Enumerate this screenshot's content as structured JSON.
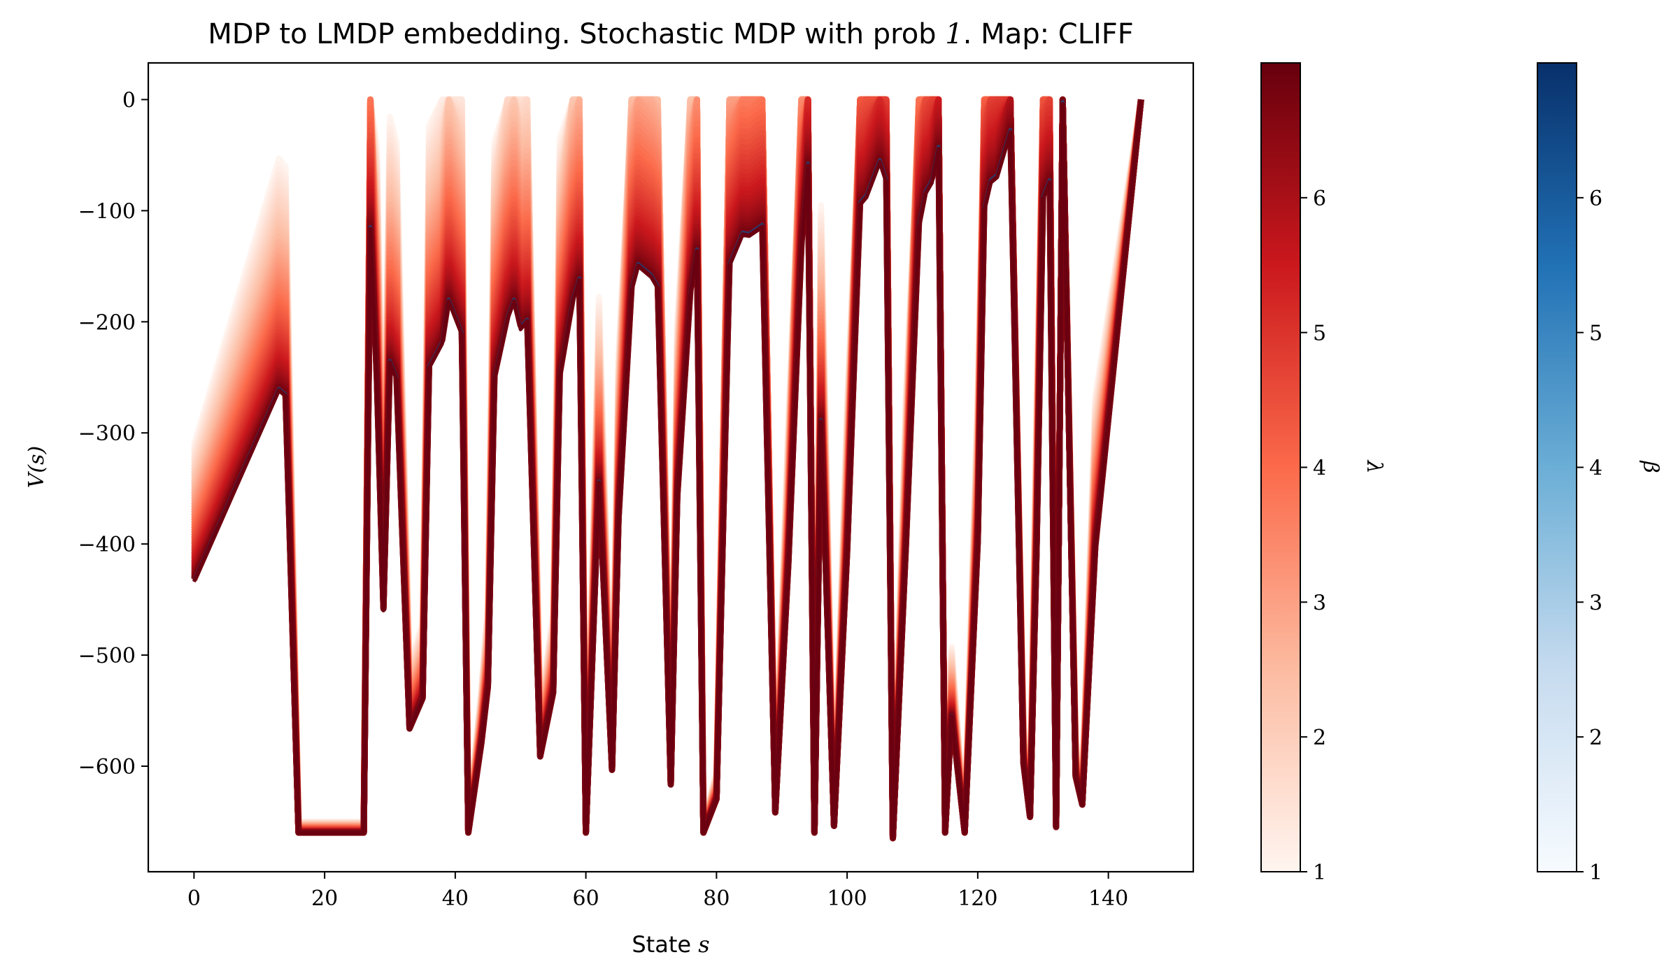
{
  "chart_data": {
    "type": "line",
    "title": "MDP to LMDP embedding. Stochastic MDP with prob 1. Map: CLIFF",
    "title_parts": {
      "prefix": "MDP to LMDP embedding. Stochastic MDP with prob ",
      "math": "1",
      "suffix": ". Map: CLIFF"
    },
    "xlabel_parts": {
      "text": "State ",
      "math": "s"
    },
    "ylabel": "V(s)",
    "xlim": [
      -7,
      153
    ],
    "ylim": [
      -695,
      33
    ],
    "xticks": [
      0,
      20,
      40,
      60,
      80,
      100,
      120,
      140
    ],
    "yticks": [
      0,
      -100,
      -200,
      -300,
      -400,
      -500,
      -600
    ],
    "ytick_labels": [
      "0",
      "−100",
      "−200",
      "−300",
      "−400",
      "−500",
      "−600"
    ],
    "grid": false,
    "lambda_range": [
      1,
      7
    ],
    "series_note": "curves for lambda from 1 (light) to 7 (dark)",
    "lower_curve": {
      "x": [
        0,
        13,
        14,
        16,
        26,
        27,
        28,
        29,
        30,
        31,
        33,
        35,
        36,
        38,
        39,
        41,
        42,
        44,
        45,
        46,
        48,
        49,
        50,
        51,
        53,
        55,
        56,
        58,
        59,
        60,
        62,
        64,
        65,
        67,
        68,
        70,
        71,
        73,
        74,
        76,
        77,
        78,
        80,
        82,
        84,
        85,
        87,
        89,
        91,
        93,
        94,
        95,
        96,
        98,
        100,
        102,
        103,
        105,
        106,
        107,
        109,
        111,
        112,
        113,
        114,
        115,
        116,
        118,
        120,
        121,
        122,
        123,
        125,
        127,
        128,
        129,
        130,
        131,
        132,
        133,
        135,
        136,
        138,
        145
      ],
      "y": [
        -434,
        -262,
        -267,
        -660,
        -660,
        -117,
        -255,
        -460,
        -237,
        -252,
        -567,
        -540,
        -242,
        -220,
        -182,
        -212,
        -660,
        -580,
        -530,
        -252,
        -198,
        -182,
        -207,
        -200,
        -592,
        -535,
        -250,
        -182,
        -163,
        -660,
        -345,
        -604,
        -380,
        -172,
        -150,
        -160,
        -170,
        -617,
        -360,
        -176,
        -137,
        -660,
        -630,
        -150,
        -122,
        -123,
        -115,
        -642,
        -420,
        -135,
        -60,
        -660,
        -290,
        -654,
        -410,
        -95,
        -88,
        -57,
        -75,
        -665,
        -405,
        -115,
        -85,
        -75,
        -45,
        -660,
        -555,
        -660,
        -400,
        -100,
        -75,
        -70,
        -30,
        -598,
        -646,
        -410,
        -90,
        -75,
        -655,
        -5,
        -610,
        -635,
        -405,
        0
      ]
    },
    "colorbars": [
      {
        "label": "λ",
        "min": 1,
        "max": 7,
        "ticks": [
          1,
          2,
          3,
          4,
          5,
          6
        ],
        "cmap": "Reds",
        "colors": [
          "#fff5f0",
          "#fcbba1",
          "#fb6a4a",
          "#cb181d",
          "#67000d"
        ]
      },
      {
        "label": "β",
        "min": 1,
        "max": 7,
        "ticks": [
          1,
          2,
          3,
          4,
          5,
          6
        ],
        "cmap": "Blues",
        "colors": [
          "#f7fbff",
          "#c6dbef",
          "#6baed6",
          "#2171b5",
          "#08306b"
        ]
      }
    ]
  }
}
